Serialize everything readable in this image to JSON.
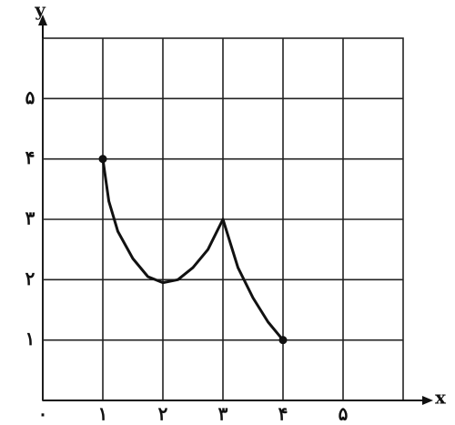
{
  "chart_data": {
    "type": "line",
    "x_label": "x",
    "y_label": "y",
    "x": [
      1,
      1.1,
      1.25,
      1.5,
      1.75,
      2,
      2.25,
      2.5,
      2.75,
      3,
      3.25,
      3.5,
      3.75,
      4
    ],
    "series": [
      {
        "values": [
          4,
          3.3,
          2.8,
          2.35,
          2.05,
          1.95,
          2.0,
          2.2,
          2.5,
          3,
          2.2,
          1.7,
          1.3,
          1
        ],
        "color": "#111"
      }
    ],
    "xlim": [
      0,
      6
    ],
    "ylim": [
      0,
      6
    ],
    "xticks": [
      {
        "value": 0,
        "label": "۰"
      },
      {
        "value": 1,
        "label": "۱"
      },
      {
        "value": 2,
        "label": "۲"
      },
      {
        "value": 3,
        "label": "۳"
      },
      {
        "value": 4,
        "label": "۴"
      },
      {
        "value": 5,
        "label": "۵"
      }
    ],
    "yticks": [
      {
        "value": 1,
        "label": "۱"
      },
      {
        "value": 2,
        "label": "۲"
      },
      {
        "value": 3,
        "label": "۳"
      },
      {
        "value": 4,
        "label": "۴"
      },
      {
        "value": 5,
        "label": "۵"
      }
    ],
    "grid": true
  }
}
